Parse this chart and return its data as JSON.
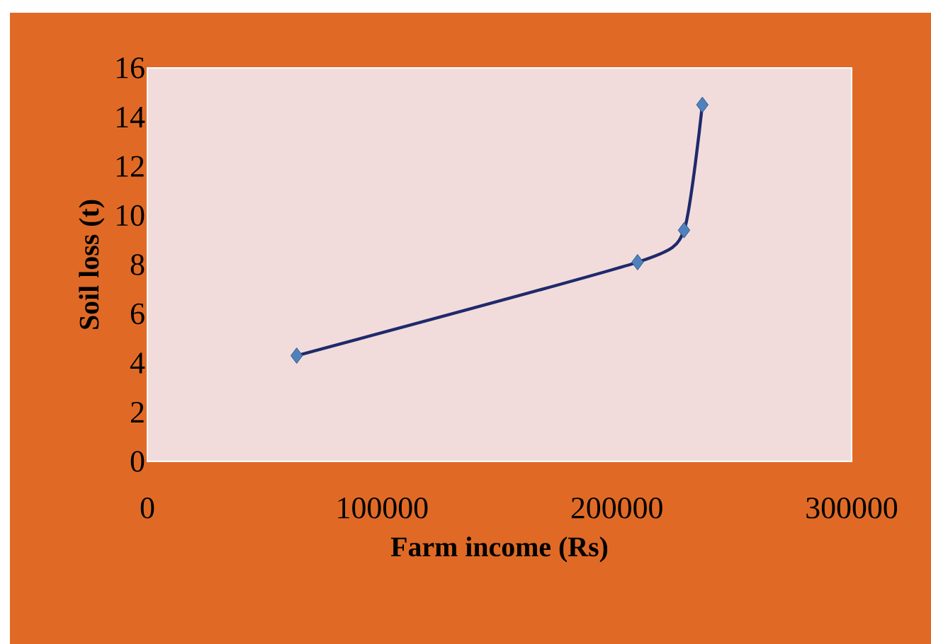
{
  "chart_data": {
    "type": "line",
    "xlabel": "Farm income (Rs)",
    "ylabel": "Soil loss (t)",
    "series": [
      {
        "color": "#1f2a6b",
        "x": [
          63600,
          208800,
          228600,
          236400
        ],
        "values": [
          4.3,
          8.1,
          9.4,
          14.5
        ]
      }
    ],
    "marker": "diamond",
    "line_style": "solid",
    "xlim": [
      0,
      300000
    ],
    "xticks": [
      0,
      100000,
      200000,
      300000
    ],
    "ylim": [
      0,
      16
    ],
    "yticks": [
      0,
      2,
      4,
      6,
      8,
      10,
      12,
      14,
      16
    ]
  }
}
